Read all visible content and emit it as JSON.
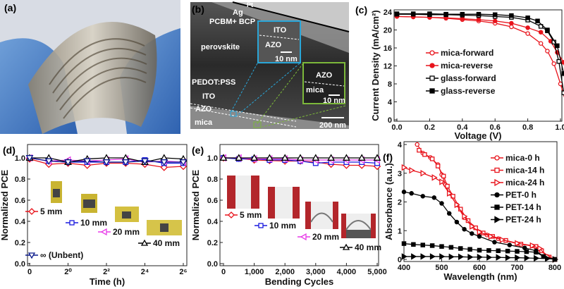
{
  "panels": {
    "a": "(a)",
    "b": "(b)",
    "c": "(c)",
    "d": "(d)",
    "e": "(e)",
    "f": "(f)"
  },
  "tem": {
    "pt": "Pt",
    "ag": "Ag",
    "pcbm": "PCBM+ BCP",
    "perovskite": "perovskite",
    "pedot": "PEDOT:PSS",
    "ito": "ITO",
    "azo": "AZO",
    "mica": "mica",
    "scale": "200 nm",
    "inset1": {
      "ito": "ITO",
      "azo": "AZO",
      "scale": "10 nm"
    },
    "inset2": {
      "azo": "AZO",
      "mica": "mica",
      "scale": "10 nm"
    }
  },
  "colors": {
    "red": "#e8141c",
    "black": "#000000",
    "blue": "#1a1adf",
    "magenta": "#e83be8",
    "navy": "#0b1a8c",
    "inset1": "#2aa6d8",
    "inset2": "#7cb83a"
  },
  "chart_data": [
    {
      "id": "c",
      "type": "line",
      "xlabel": "Voltage (V)",
      "ylabel": "Current Density (mA/cm²)",
      "xlim": [
        0,
        1.13
      ],
      "ylim": [
        0,
        24
      ],
      "xticks": [
        "0.0",
        "0.2",
        "0.4",
        "0.6",
        "0.8",
        "1.0"
      ],
      "yticks": [
        "0",
        "4",
        "8",
        "12",
        "16",
        "20",
        "24"
      ],
      "legend": "center-left",
      "series": [
        {
          "name": "mica-forward",
          "color": "#e8141c",
          "marker": "circle",
          "fill": false,
          "points": [
            [
              0,
              23
            ],
            [
              0.1,
              22.9
            ],
            [
              0.2,
              22.8
            ],
            [
              0.3,
              22.6
            ],
            [
              0.4,
              22.3
            ],
            [
              0.5,
              22
            ],
            [
              0.6,
              21.5
            ],
            [
              0.7,
              20.7
            ],
            [
              0.8,
              19.2
            ],
            [
              0.88,
              17
            ],
            [
              0.92,
              15.3
            ],
            [
              0.96,
              12.5
            ],
            [
              1.0,
              8
            ],
            [
              1.04,
              3
            ],
            [
              1.07,
              0
            ]
          ]
        },
        {
          "name": "mica-reverse",
          "color": "#e8141c",
          "marker": "circle",
          "fill": true,
          "points": [
            [
              0,
              23
            ],
            [
              0.1,
              22.9
            ],
            [
              0.2,
              22.8
            ],
            [
              0.3,
              22.7
            ],
            [
              0.4,
              22.5
            ],
            [
              0.5,
              22.3
            ],
            [
              0.6,
              22
            ],
            [
              0.7,
              21.5
            ],
            [
              0.8,
              20.5
            ],
            [
              0.88,
              19.5
            ],
            [
              0.94,
              17.5
            ],
            [
              0.98,
              15
            ],
            [
              1.02,
              12.8
            ],
            [
              1.05,
              6
            ],
            [
              1.08,
              0
            ]
          ]
        },
        {
          "name": "glass-forward",
          "color": "#000000",
          "marker": "square",
          "fill": false,
          "points": [
            [
              0,
              23.5
            ],
            [
              0.1,
              23.5
            ],
            [
              0.2,
              23.4
            ],
            [
              0.3,
              23.4
            ],
            [
              0.4,
              23.3
            ],
            [
              0.5,
              23.2
            ],
            [
              0.6,
              23
            ],
            [
              0.7,
              22.8
            ],
            [
              0.8,
              22.2
            ],
            [
              0.88,
              20.8
            ],
            [
              0.92,
              19.8
            ],
            [
              0.96,
              17.3
            ],
            [
              0.99,
              13
            ],
            [
              1.02,
              6
            ],
            [
              1.05,
              0
            ]
          ]
        },
        {
          "name": "glass-reverse",
          "color": "#000000",
          "marker": "square",
          "fill": true,
          "points": [
            [
              0,
              23.6
            ],
            [
              0.1,
              23.6
            ],
            [
              0.2,
              23.6
            ],
            [
              0.3,
              23.5
            ],
            [
              0.4,
              23.5
            ],
            [
              0.5,
              23.5
            ],
            [
              0.6,
              23.4
            ],
            [
              0.7,
              23.2
            ],
            [
              0.8,
              22.7
            ],
            [
              0.86,
              22
            ],
            [
              0.92,
              20
            ],
            [
              0.98,
              16.5
            ],
            [
              1.02,
              10.3
            ],
            [
              1.05,
              5
            ],
            [
              1.06,
              0.5
            ]
          ]
        }
      ]
    },
    {
      "id": "d",
      "type": "line",
      "xlabel": "Time (h)",
      "ylabel": "Normalized PCE",
      "xlim": [
        0,
        8
      ],
      "ylim": [
        0,
        1.1
      ],
      "xticks": [
        "0",
        "2⁰",
        "2²",
        "2⁴",
        "2⁶"
      ],
      "yticks": [
        "0.0",
        "0.2",
        "0.4",
        "0.6",
        "0.8",
        "1.0"
      ],
      "series": [
        {
          "name": "5 mm",
          "color": "#e8141c",
          "marker": "diamond",
          "fill": false,
          "values": [
            0.99,
            0.94,
            0.95,
            0.93,
            0.95,
            0.95,
            0.94,
            0.91,
            0.92
          ]
        },
        {
          "name": "10 mm",
          "color": "#1a1adf",
          "marker": "square",
          "fill": false,
          "values": [
            1.0,
            0.97,
            0.96,
            0.96,
            0.96,
            0.96,
            0.98,
            0.95,
            0.95
          ]
        },
        {
          "name": "20 mm",
          "color": "#e83be8",
          "marker": "tri-left",
          "fill": false,
          "values": [
            1.0,
            0.97,
            0.98,
            0.97,
            0.98,
            0.99,
            0.96,
            0.97,
            0.96
          ]
        },
        {
          "name": "40 mm",
          "color": "#000000",
          "marker": "tri-up",
          "fill": false,
          "values": [
            1.0,
            1.0,
            0.96,
            0.99,
            1.0,
            1.0,
            0.96,
            1.0,
            0.99
          ]
        },
        {
          "name": "∞ (Unbent)",
          "color": "#0b1a8c",
          "marker": "tri-down",
          "fill": false,
          "values": [
            1.0,
            0.97,
            0.96,
            0.97,
            0.96,
            0.96,
            0.97,
            0.96,
            0.96
          ]
        }
      ]
    },
    {
      "id": "e",
      "type": "line",
      "xlabel": "Bending Cycles",
      "ylabel": "Normalized PCE",
      "xlim": [
        0,
        5000
      ],
      "ylim": [
        0,
        1.1
      ],
      "x": [
        0,
        500,
        1000,
        1500,
        2000,
        2500,
        3000,
        3500,
        4000,
        4500,
        5000
      ],
      "xticks": [
        "0",
        "1,000",
        "2,000",
        "3,000",
        "4,000",
        "5,000"
      ],
      "yticks": [
        "0.0",
        "0.2",
        "0.4",
        "0.6",
        "0.8",
        "1.0"
      ],
      "series": [
        {
          "name": "5 mm",
          "color": "#e8141c",
          "marker": "diamond",
          "fill": false,
          "values": [
            1.0,
            0.995,
            0.98,
            0.975,
            0.97,
            0.97,
            0.96,
            0.94,
            0.93,
            0.93,
            0.92
          ]
        },
        {
          "name": "10 mm",
          "color": "#1a1adf",
          "marker": "square",
          "fill": false,
          "values": [
            1.0,
            0.99,
            0.99,
            0.98,
            0.98,
            0.97,
            0.95,
            0.96,
            0.96,
            0.96,
            0.95
          ]
        },
        {
          "name": "20 mm",
          "color": "#e83be8",
          "marker": "tri-left",
          "fill": false,
          "values": [
            1.0,
            1.0,
            0.99,
            0.99,
            0.99,
            0.98,
            0.98,
            0.98,
            0.98,
            0.98,
            0.98
          ]
        },
        {
          "name": "40 mm",
          "color": "#000000",
          "marker": "tri-up",
          "fill": false,
          "values": [
            1,
            1,
            1,
            1,
            1,
            1,
            1,
            1,
            1,
            1,
            1
          ]
        }
      ]
    },
    {
      "id": "f",
      "type": "line",
      "xlabel": "Wavelength (nm)",
      "ylabel": "Absorbance (a.u.)",
      "xlim": [
        400,
        800
      ],
      "ylim": [
        0,
        4
      ],
      "xticks": [
        "400",
        "500",
        "600",
        "700",
        "800"
      ],
      "yticks": [
        "0",
        "1",
        "2",
        "3",
        "4"
      ],
      "legend": "top-right",
      "series": [
        {
          "name": "mica-0 h",
          "color": "#e8141c",
          "marker": "circle",
          "fill": false,
          "points": [
            [
              435,
              4
            ],
            [
              450,
              3.7
            ],
            [
              470,
              3.55
            ],
            [
              490,
              3.3
            ],
            [
              500,
              2.95
            ],
            [
              510,
              2.6
            ],
            [
              520,
              2.3
            ],
            [
              540,
              1.9
            ],
            [
              560,
              1.45
            ],
            [
              580,
              1.15
            ],
            [
              600,
              0.95
            ],
            [
              620,
              0.85
            ],
            [
              650,
              0.72
            ],
            [
              700,
              0.55
            ],
            [
              740,
              0.47
            ],
            [
              760,
              0.35
            ],
            [
              780,
              0.1
            ],
            [
              800,
              0
            ]
          ]
        },
        {
          "name": "mica-14 h",
          "color": "#e8141c",
          "marker": "square",
          "fill": false,
          "points": [
            [
              440,
              3.8
            ],
            [
              455,
              3.65
            ],
            [
              475,
              3.5
            ],
            [
              490,
              3.25
            ],
            [
              505,
              2.9
            ],
            [
              515,
              2.55
            ],
            [
              530,
              2.2
            ],
            [
              550,
              1.75
            ],
            [
              570,
              1.35
            ],
            [
              590,
              1.1
            ],
            [
              610,
              0.92
            ],
            [
              635,
              0.8
            ],
            [
              670,
              0.66
            ],
            [
              710,
              0.53
            ],
            [
              750,
              0.45
            ],
            [
              765,
              0.3
            ],
            [
              785,
              0.08
            ],
            [
              800,
              0
            ]
          ]
        },
        {
          "name": "mica-24 h",
          "color": "#e8141c",
          "marker": "tri-right",
          "fill": false,
          "points": [
            [
              400,
              3.2
            ],
            [
              420,
              3.1
            ],
            [
              450,
              3.0
            ],
            [
              480,
              2.85
            ],
            [
              500,
              2.7
            ],
            [
              520,
              2.3
            ],
            [
              540,
              1.9
            ],
            [
              560,
              1.5
            ],
            [
              580,
              1.15
            ],
            [
              600,
              0.95
            ],
            [
              630,
              0.8
            ],
            [
              660,
              0.68
            ],
            [
              700,
              0.56
            ],
            [
              740,
              0.48
            ],
            [
              760,
              0.38
            ],
            [
              780,
              0.1
            ],
            [
              800,
              0
            ]
          ]
        },
        {
          "name": "PET-0 h",
          "color": "#000000",
          "marker": "circle",
          "fill": true,
          "points": [
            [
              400,
              2.35
            ],
            [
              420,
              2.3
            ],
            [
              450,
              2.2
            ],
            [
              480,
              2.15
            ],
            [
              500,
              1.95
            ],
            [
              520,
              1.6
            ],
            [
              540,
              1.3
            ],
            [
              560,
              1.05
            ],
            [
              580,
              0.9
            ],
            [
              600,
              0.8
            ],
            [
              640,
              0.6
            ],
            [
              680,
              0.5
            ],
            [
              720,
              0.4
            ],
            [
              750,
              0.3
            ],
            [
              770,
              0.1
            ],
            [
              800,
              0
            ]
          ]
        },
        {
          "name": "PET-14 h",
          "color": "#000000",
          "marker": "square",
          "fill": true,
          "points": [
            [
              400,
              0.55
            ],
            [
              425,
              0.52
            ],
            [
              450,
              0.5
            ],
            [
              475,
              0.48
            ],
            [
              500,
              0.45
            ],
            [
              525,
              0.42
            ],
            [
              550,
              0.38
            ],
            [
              575,
              0.35
            ],
            [
              600,
              0.32
            ],
            [
              625,
              0.31
            ],
            [
              650,
              0.3
            ],
            [
              675,
              0.29
            ],
            [
              700,
              0.28
            ],
            [
              725,
              0.27
            ],
            [
              750,
              0.25
            ],
            [
              770,
              0.1
            ],
            [
              800,
              0
            ]
          ]
        },
        {
          "name": "PET-24 h",
          "color": "#000000",
          "marker": "tri-right",
          "fill": true,
          "points": [
            [
              400,
              0.1
            ],
            [
              425,
              0.1
            ],
            [
              450,
              0.1
            ],
            [
              475,
              0.1
            ],
            [
              500,
              0.1
            ],
            [
              525,
              0.09
            ],
            [
              550,
              0.09
            ],
            [
              575,
              0.08
            ],
            [
              600,
              0.08
            ],
            [
              625,
              0.07
            ],
            [
              650,
              0.07
            ],
            [
              675,
              0.06
            ],
            [
              700,
              0.06
            ],
            [
              725,
              0.05
            ],
            [
              750,
              0.04
            ],
            [
              780,
              0.03
            ],
            [
              800,
              0
            ]
          ]
        }
      ]
    }
  ]
}
